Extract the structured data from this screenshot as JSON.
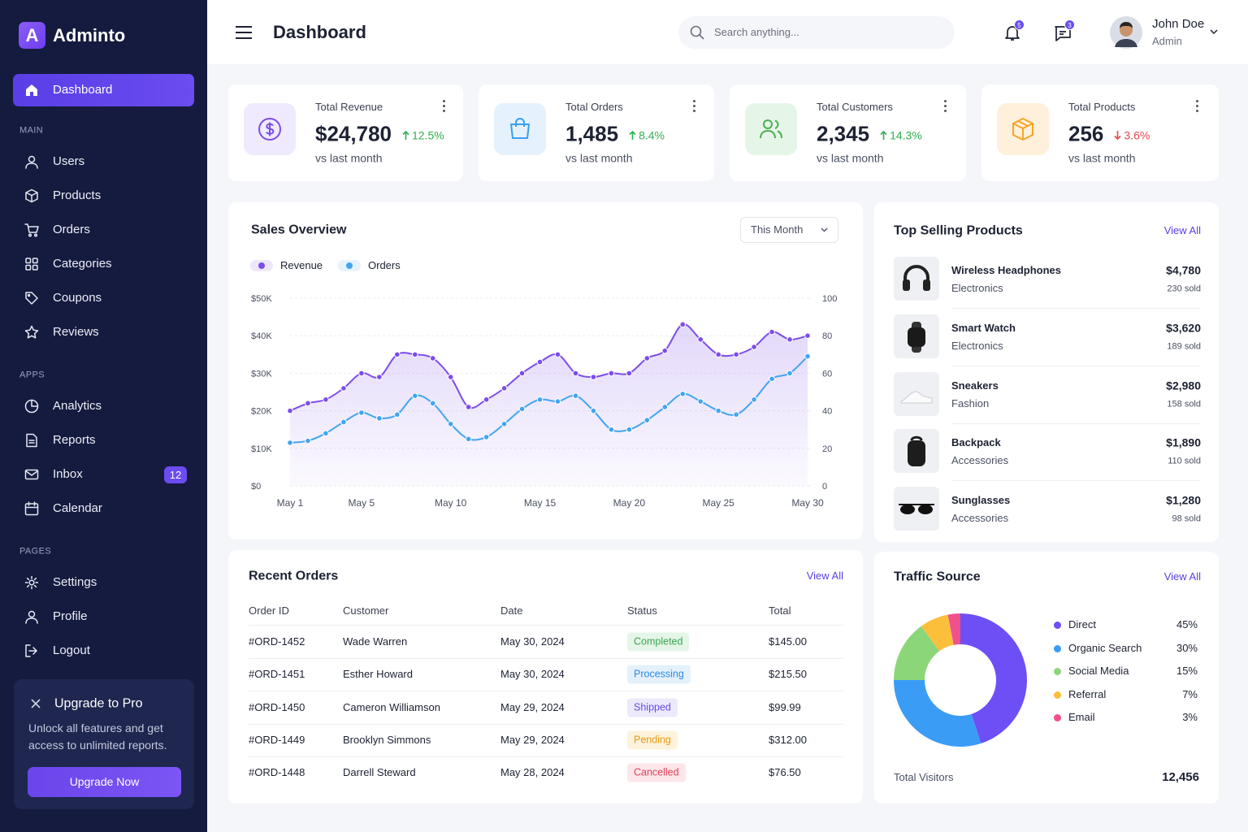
{
  "brand": {
    "logo": "A",
    "name": "Adminto"
  },
  "nav": {
    "active": {
      "label": "Dashboard"
    },
    "sections": [
      {
        "title": "MAIN",
        "items": [
          {
            "label": "Users"
          },
          {
            "label": "Products"
          },
          {
            "label": "Orders"
          },
          {
            "label": "Categories"
          },
          {
            "label": "Coupons"
          },
          {
            "label": "Reviews"
          }
        ]
      },
      {
        "title": "APPS",
        "items": [
          {
            "label": "Analytics"
          },
          {
            "label": "Reports"
          },
          {
            "label": "Inbox",
            "badge": 12
          },
          {
            "label": "Calendar"
          }
        ]
      },
      {
        "title": "PAGES",
        "items": [
          {
            "label": "Settings"
          },
          {
            "label": "Profile"
          },
          {
            "label": "Logout"
          }
        ]
      }
    ]
  },
  "upgrade": {
    "title": "Upgrade to Pro",
    "text": "Unlock all features and get access to unlimited reports.",
    "button": "Upgrade Now"
  },
  "header": {
    "title": "Dashboard",
    "search_placeholder": "Search anything...",
    "notifications": 5,
    "messages": 3,
    "user": {
      "name": "John Doe",
      "role": "Admin"
    }
  },
  "stats": [
    {
      "label": "Total Revenue",
      "value": "$24,780",
      "change": "12.5%",
      "trend": "up",
      "note": "vs last month",
      "icon_color": "#7c4dea",
      "icon_background": "#efeafd"
    },
    {
      "label": "Total Orders",
      "value": "1,485",
      "change": "8.4%",
      "trend": "up",
      "note": "vs last month",
      "icon_color": "#3ba0f0",
      "icon_background": "#e5f2fd"
    },
    {
      "label": "Total Customers",
      "value": "2,345",
      "change": "14.3%",
      "trend": "up",
      "note": "vs last month",
      "icon_color": "#4caf50",
      "icon_background": "#e5f6e8"
    },
    {
      "label": "Total Products",
      "value": "256",
      "change": "3.6%",
      "trend": "down",
      "note": "vs last month",
      "icon_color": "#f5a623",
      "icon_background": "#fff0dc"
    }
  ],
  "top_products": {
    "title": "Top Selling Products",
    "link": "View All",
    "items": [
      {
        "name": "Wireless Headphones",
        "category": "Electronics",
        "revenue": "$4,780",
        "sold": "230 sold"
      },
      {
        "name": "Smart Watch",
        "category": "Electronics",
        "revenue": "$3,620",
        "sold": "189 sold"
      },
      {
        "name": "Sneakers",
        "category": "Fashion",
        "revenue": "$2,980",
        "sold": "158 sold"
      },
      {
        "name": "Backpack",
        "category": "Accessories",
        "revenue": "$1,890",
        "sold": "110 sold"
      },
      {
        "name": "Sunglasses",
        "category": "Accessories",
        "revenue": "$1,280",
        "sold": "98 sold"
      }
    ]
  },
  "recent_orders": {
    "title": "Recent Orders",
    "link": "View All",
    "columns": [
      "Order ID",
      "Customer",
      "Date",
      "Status",
      "Total"
    ],
    "rows": [
      [
        "#ORD-1452",
        "Wade Warren",
        "May 30, 2024",
        "Completed",
        "$145.00"
      ],
      [
        "#ORD-1451",
        "Esther Howard",
        "May 30, 2024",
        "Processing",
        "$215.50"
      ],
      [
        "#ORD-1450",
        "Cameron Williamson",
        "May 29, 2024",
        "Shipped",
        "$99.99"
      ],
      [
        "#ORD-1449",
        "Brooklyn Simmons",
        "May 29, 2024",
        "Pending",
        "$312.00"
      ],
      [
        "#ORD-1448",
        "Darrell Steward",
        "May 28, 2024",
        "Cancelled",
        "$76.50"
      ]
    ],
    "status_colors": [
      {
        "text": "#3aa552",
        "background": "#e5f6e8"
      },
      {
        "text": "#2b8ae0",
        "background": "#e4f1fd"
      },
      {
        "text": "#6a4ce6",
        "background": "#ece9fc"
      },
      {
        "text": "#e69b14",
        "background": "#fdf3dc"
      },
      {
        "text": "#e0405a",
        "background": "#fde6ea"
      }
    ]
  },
  "chart_data": [
    {
      "type": "line",
      "title": "Sales Overview",
      "filter": "This Month",
      "categories": [
        "May 1",
        null,
        null,
        null,
        "May 5",
        null,
        null,
        null,
        null,
        "May 10",
        null,
        null,
        null,
        null,
        "May 15",
        null,
        null,
        null,
        null,
        "May 20",
        null,
        null,
        null,
        null,
        "May 25",
        null,
        null,
        null,
        null,
        "May 30"
      ],
      "series": [
        {
          "name": "Revenue",
          "color": "#7c4dea",
          "values": [
            20000,
            22000,
            23000,
            26000,
            30000,
            29000,
            35000,
            35000,
            34000,
            29000,
            21000,
            23000,
            26000,
            30000,
            33000,
            35000,
            30000,
            29000,
            30000,
            30000,
            34000,
            36000,
            43000,
            39000,
            35000,
            35000,
            37000,
            41000,
            39000,
            40000
          ]
        },
        {
          "name": "Orders",
          "color": "#42a5f0",
          "axis": "y2",
          "values": [
            23,
            24,
            28,
            34,
            39,
            36,
            38,
            48,
            44,
            33,
            25,
            26,
            33,
            41,
            46,
            45,
            48,
            40,
            30,
            30,
            35,
            42,
            49,
            45,
            40,
            38,
            46,
            57,
            60,
            69
          ]
        }
      ],
      "ylim": [
        0,
        50000
      ],
      "yticks": [
        {
          "value": 0,
          "label": "$0"
        },
        {
          "value": 10000,
          "label": "$10K"
        },
        {
          "value": 20000,
          "label": "$20K"
        },
        {
          "value": 30000,
          "label": "$30K"
        },
        {
          "value": 40000,
          "label": "$40K"
        },
        {
          "value": 50000,
          "label": "$50K"
        }
      ],
      "y2lim": [
        0,
        100
      ],
      "y2ticks": [
        0,
        20,
        40,
        60,
        80,
        100
      ],
      "grid": true
    },
    {
      "type": "pie",
      "title": "Traffic Source",
      "link": "View All",
      "categories": [
        "Direct",
        "Organic Search",
        "Social Media",
        "Referral",
        "Email"
      ],
      "values": [
        45,
        30,
        15,
        7,
        3
      ],
      "value_labels": [
        "45%",
        "30%",
        "15%",
        "7%",
        "3%"
      ],
      "colors": [
        "#6e4ff6",
        "#3b9cf5",
        "#8cd67a",
        "#fbbf3c",
        "#f0508c"
      ],
      "total_label": "Total Visitors",
      "total": "12,456"
    }
  ]
}
